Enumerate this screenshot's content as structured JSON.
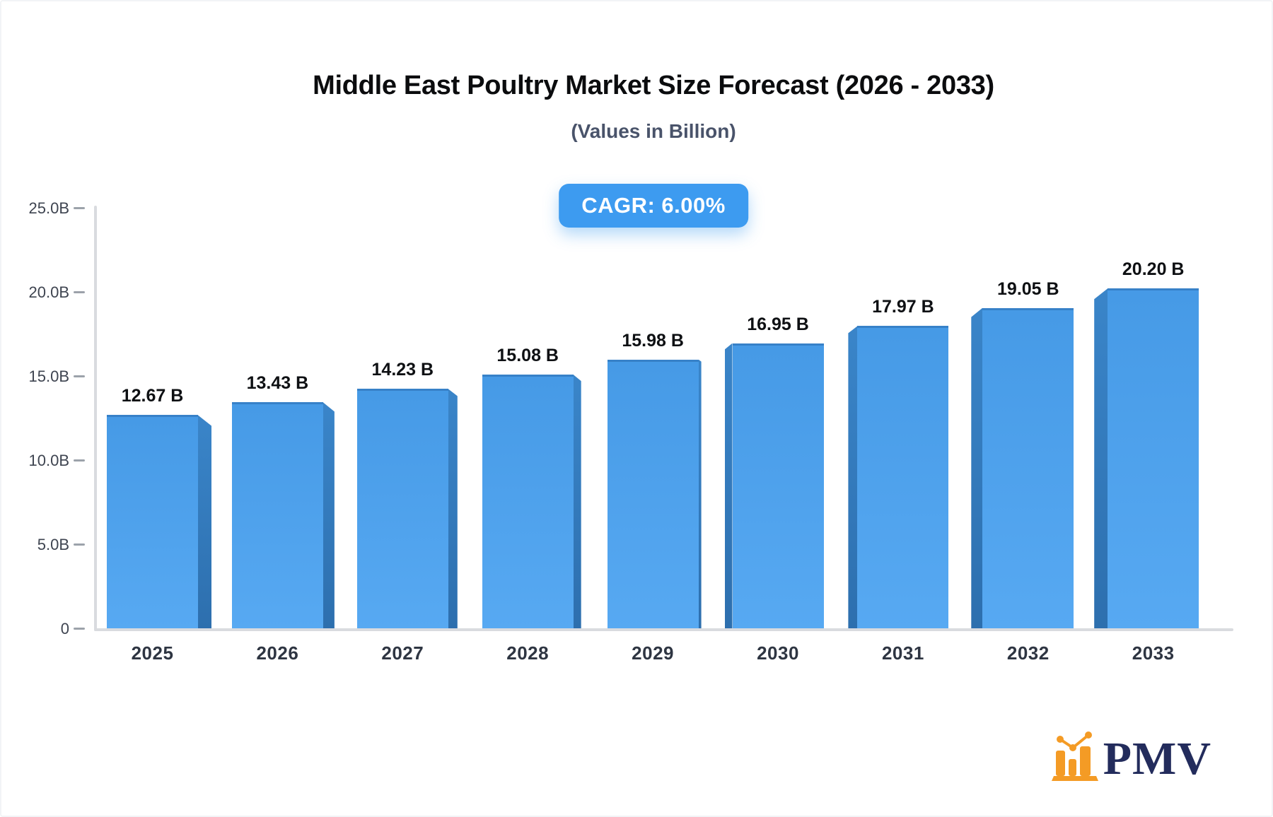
{
  "header": {
    "title": "Middle East Poultry Market Size Forecast (2026 - 2033)",
    "subtitle": "(Values in Billion)"
  },
  "badge": {
    "label": "CAGR: 6.00%"
  },
  "chart_data": {
    "type": "bar",
    "title": "Middle East Poultry Market Size Forecast (2026 - 2033)",
    "subtitle": "(Values in Billion)",
    "cagr": "6.00%",
    "categories": [
      "2025",
      "2026",
      "2027",
      "2028",
      "2029",
      "2030",
      "2031",
      "2032",
      "2033"
    ],
    "values": [
      12.67,
      13.43,
      14.23,
      15.08,
      15.98,
      16.95,
      17.97,
      19.05,
      20.2
    ],
    "value_labels": [
      "12.67 B",
      "13.43 B",
      "14.23 B",
      "15.08 B",
      "15.98 B",
      "16.95 B",
      "17.97 B",
      "19.05 B",
      "20.20 B"
    ],
    "xlabel": "",
    "ylabel": "",
    "ylim": [
      0,
      25
    ],
    "yticks": [
      {
        "value": 0,
        "label": "0"
      },
      {
        "value": 5,
        "label": "5.0B"
      },
      {
        "value": 10,
        "label": "10.0B"
      },
      {
        "value": 15,
        "label": "15.0B"
      },
      {
        "value": 20,
        "label": "20.0B"
      },
      {
        "value": 25,
        "label": "25.0B"
      }
    ],
    "grid": false,
    "legend": false,
    "bar_style": "3d-perspective"
  },
  "logo": {
    "text": "PMV",
    "icon": "bar-chart-icon"
  },
  "colors": {
    "accent": "#3d9bf0",
    "bar_face_top": "#469ae6",
    "bar_face_bottom": "#57a9f2",
    "bar_edge": "#3781c8",
    "bar_side_top": "#3a85c9",
    "bar_side_bottom": "#2d6fae",
    "axis_line": "#d9dbdf",
    "tick_mark": "#9ca2aa",
    "y_label_text": "#3e4450",
    "x_label_text": "#2e3542",
    "value_label_text": "#0e1013",
    "title_text": "#0b0c0e",
    "subtitle_text": "#49536a",
    "logo_orange": "#f49b25",
    "logo_navy": "#232c5c"
  }
}
